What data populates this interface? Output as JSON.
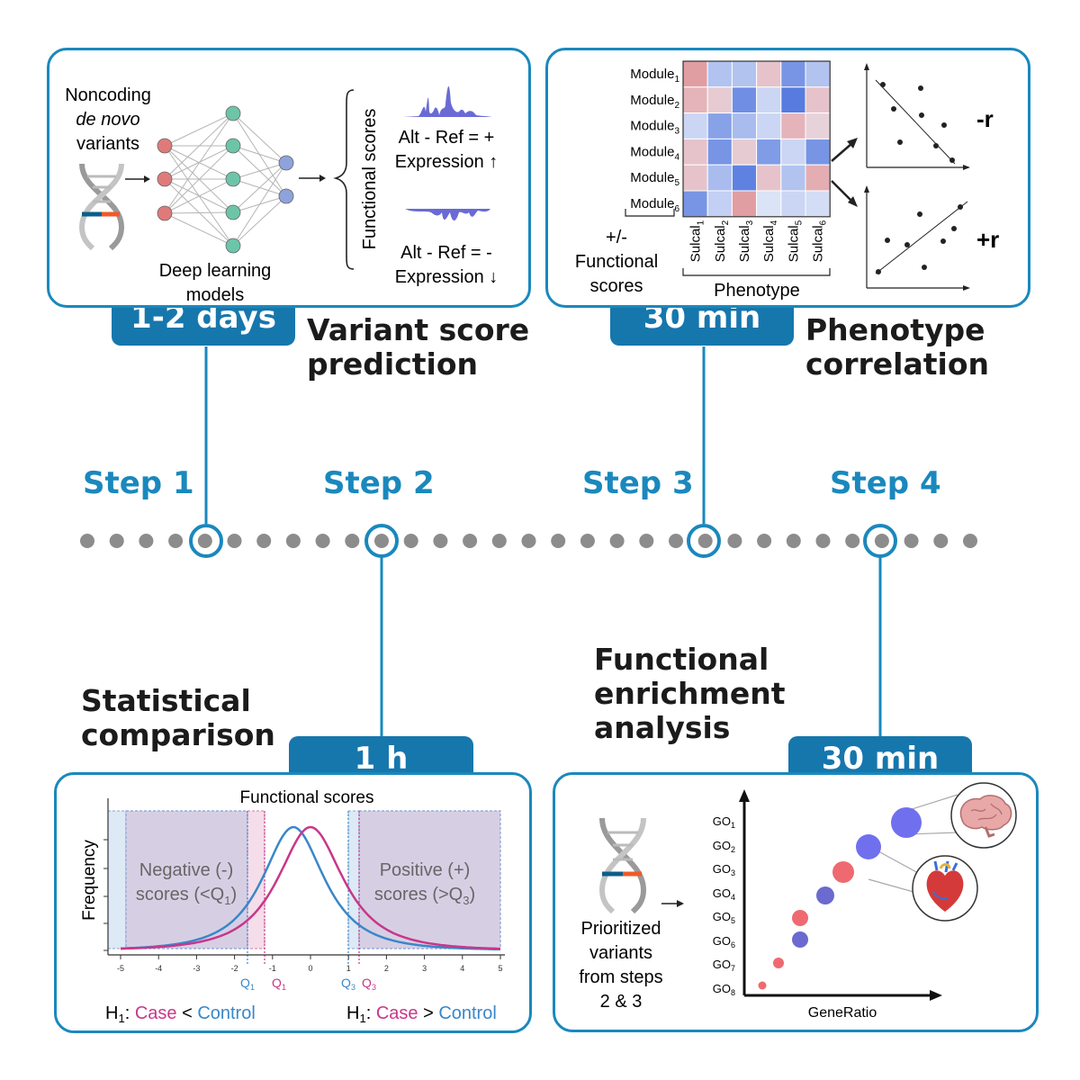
{
  "steps": [
    {
      "label": "Step 1",
      "duration": "1-2 days",
      "title_lines": [
        "Variant score",
        "prediction"
      ]
    },
    {
      "label": "Step 2",
      "duration": "1 h",
      "title_lines": [
        "Statistical",
        "comparison"
      ]
    },
    {
      "label": "Step 3",
      "duration": "30 min",
      "title_lines": [
        "Phenotype",
        "correlation"
      ]
    },
    {
      "label": "Step 4",
      "duration": "30 min",
      "title_lines": [
        "Functional",
        "enrichment",
        "analysis"
      ]
    }
  ],
  "panel1": {
    "input_lines": [
      "Noncoding",
      "de novo",
      "variants"
    ],
    "model_lines": [
      "Deep learning",
      "models"
    ],
    "scores_label": "Functional scores",
    "plus_lines": [
      "Alt - Ref = +",
      "Expression ↑"
    ],
    "minus_lines": [
      "Alt - Ref = -",
      "Expression ↓"
    ],
    "colors": {
      "node_input": "#e07a7a",
      "node_hidden": "#6cc5a8",
      "node_output": "#8ea2dc",
      "density": "#6a6ad6"
    }
  },
  "panel3": {
    "modules": [
      "Module",
      "Module",
      "Module",
      "Module",
      "Module",
      "Module"
    ],
    "module_subs": [
      "1",
      "2",
      "3",
      "4",
      "5",
      "6"
    ],
    "sulcals": [
      "Sulcal",
      "Sulcal",
      "Sulcal",
      "Sulcal",
      "Sulcal",
      "Sulcal"
    ],
    "sulcal_subs": [
      "1",
      "2",
      "3",
      "4",
      "5",
      "6"
    ],
    "phenotype_label": "Phenotype",
    "fs_lines": [
      "+/-",
      "Functional",
      "scores"
    ],
    "neg_r": "-r",
    "pos_r": "+r",
    "heatmap_values": [
      [
        0.55,
        -0.35,
        -0.35,
        0.3,
        -0.7,
        -0.35
      ],
      [
        0.4,
        0.25,
        -0.75,
        -0.2,
        -0.9,
        0.3
      ],
      [
        -0.2,
        -0.6,
        -0.4,
        -0.2,
        0.4,
        0.2
      ],
      [
        0.3,
        -0.7,
        0.25,
        -0.65,
        -0.2,
        -0.7
      ],
      [
        0.3,
        -0.4,
        -0.85,
        0.3,
        -0.35,
        0.45
      ],
      [
        -0.7,
        -0.25,
        0.55,
        -0.1,
        -0.2,
        -0.15
      ]
    ]
  },
  "panel2": {
    "title": "Functional scores",
    "ylabel": "Frequency",
    "neg_lines": [
      "Negative (-)",
      "scores (<Q",
      ")"
    ],
    "pos_lines": [
      "Positive (+)",
      "scores (>Q",
      ")"
    ],
    "neg_sub": "1",
    "pos_sub": "3",
    "x_ticks": [
      "-5",
      "-4",
      "-3",
      "-2",
      "-1",
      "0",
      "1",
      "2",
      "3",
      "4",
      "5"
    ],
    "q_labels": [
      "Q",
      "Q",
      "Q",
      "Q"
    ],
    "q_subs": [
      "1",
      "1",
      "3",
      "3"
    ],
    "h1_left": {
      "prefix": "H",
      "sub": "1",
      "colon": ": ",
      "case": "Case",
      "op": " < ",
      "control": "Control"
    },
    "h1_right": {
      "prefix": "H",
      "sub": "1",
      "colon": ": ",
      "case": "Case",
      "op": " > ",
      "control": "Control"
    },
    "colors": {
      "case": "#c8378a",
      "control": "#3a87c8"
    }
  },
  "panel4": {
    "variants_lines": [
      "Prioritized",
      "variants",
      "from steps",
      "2 & 3"
    ],
    "go_terms": [
      "GO",
      "GO",
      "GO",
      "GO",
      "GO",
      "GO",
      "GO",
      "GO"
    ],
    "go_subs": [
      "1",
      "2",
      "3",
      "4",
      "5",
      "6",
      "7",
      "8"
    ],
    "xlabel": "GeneRatio",
    "icons": [
      "brain-icon",
      "heart-icon"
    ]
  }
}
